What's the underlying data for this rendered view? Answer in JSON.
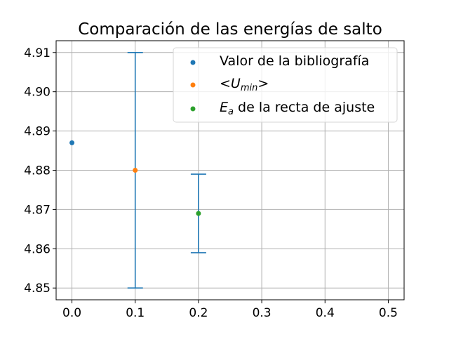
{
  "chart_data": {
    "type": "scatter",
    "title": "Comparación de las energías de salto",
    "xlabel": "",
    "ylabel": "",
    "xlim": [
      -0.025,
      0.525
    ],
    "ylim": [
      4.847,
      4.913
    ],
    "xticks": [
      0.0,
      0.1,
      0.2,
      0.3,
      0.4,
      0.5
    ],
    "xtick_labels": [
      "0.0",
      "0.1",
      "0.2",
      "0.3",
      "0.4",
      "0.5"
    ],
    "yticks": [
      4.85,
      4.86,
      4.87,
      4.88,
      4.89,
      4.9,
      4.91
    ],
    "ytick_labels": [
      "4.85",
      "4.86",
      "4.87",
      "4.88",
      "4.89",
      "4.90",
      "4.91"
    ],
    "grid": true,
    "legend_position": "top-right",
    "series": [
      {
        "name": "Valor de la bibliografía",
        "legend_parts": [
          {
            "text": "Valor de la bibliografía",
            "style": "normal"
          }
        ],
        "x": [
          0.0
        ],
        "y": [
          4.887
        ],
        "yerr": [
          null
        ],
        "color": "#1f77b4"
      },
      {
        "name": "<Umin>",
        "legend_parts": [
          {
            "text": "<",
            "style": "normal"
          },
          {
            "text": "U",
            "style": "italic"
          },
          {
            "text": "min",
            "style": "italic-sub"
          },
          {
            "text": ">",
            "style": "normal"
          }
        ],
        "x": [
          0.1
        ],
        "y": [
          4.88
        ],
        "yerr": [
          0.03
        ],
        "color": "#ff7f0e"
      },
      {
        "name": "Ea de la recta de ajuste",
        "legend_parts": [
          {
            "text": "E",
            "style": "italic"
          },
          {
            "text": "a",
            "style": "italic-sub"
          },
          {
            "text": " de la recta de ajuste",
            "style": "normal"
          }
        ],
        "x": [
          0.2
        ],
        "y": [
          4.869
        ],
        "yerr": [
          0.01
        ],
        "color": "#2ca02c"
      }
    ],
    "errorbar_color": "#1f77b4"
  }
}
